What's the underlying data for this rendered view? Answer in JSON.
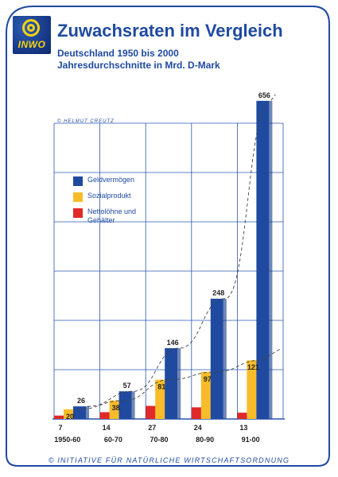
{
  "logo": {
    "text": "INWO"
  },
  "header": {
    "title": "Zuwachsraten im Vergleich",
    "subtitle_1": "Deutschland 1950 bis 2000",
    "subtitle_2": "Jahresdurchschnitte in Mrd. D-Mark"
  },
  "credit": "© HELMUT CREUTZ",
  "footer": "© INITIATIVE FÜR NATÜRLICHE WIRTSCHAFTSORDNUNG",
  "colors": {
    "frame": "#1f4aa0",
    "grid": "#2a56b0",
    "text": "#1f4aa0",
    "geldvermoegen": "#1f4aa0",
    "sozialprodukt": "#f8bc2a",
    "nettoloehne": "#e02a2a"
  },
  "chart_data": {
    "type": "bar",
    "categories": [
      "1950-60",
      "60-70",
      "70-80",
      "80-90",
      "91-00"
    ],
    "series": [
      {
        "name": "Geldvermögen",
        "values": [
          26,
          57,
          146,
          248,
          656
        ],
        "color": "#1f4aa0"
      },
      {
        "name": "Sozialprodukt",
        "values": [
          20,
          38,
          81,
          97,
          121
        ],
        "color": "#f8bc2a"
      },
      {
        "name": "Nettolöhne und Gehälter",
        "values": [
          7,
          14,
          27,
          24,
          13
        ],
        "color": "#e02a2a"
      }
    ],
    "legend": [
      {
        "label": "Geldvermögen",
        "color": "#1f4aa0"
      },
      {
        "label": "Sozialprodukt",
        "color": "#f8bc2a"
      },
      {
        "label": "Nettolöhne und",
        "label2": "Gehälter",
        "color": "#e02a2a"
      }
    ],
    "title": "Zuwachsraten im Vergleich",
    "xlabel": "",
    "ylabel": "",
    "grid": true,
    "legend_position": "upper-left",
    "trend_lines": true,
    "ylim": [
      0,
      700
    ]
  }
}
